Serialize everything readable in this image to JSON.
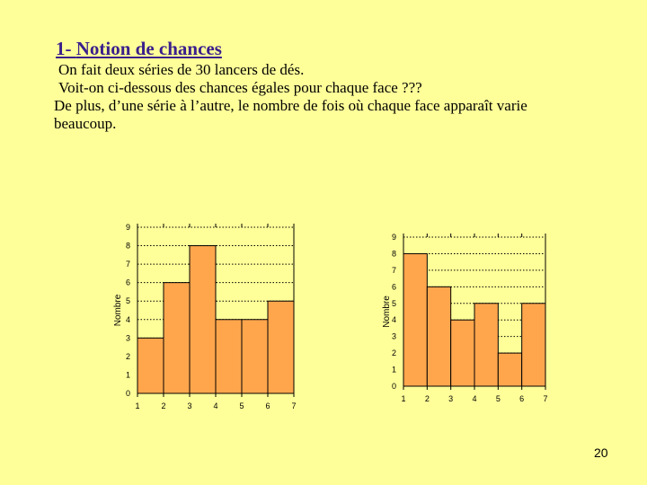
{
  "slide": {
    "title_number": "1-",
    "title_text": "Notion de chances",
    "lines": [
      "On fait deux séries de 30 lancers de dés.",
      "Voit-on ci-dessous des chances égales pour chaque face ???",
      "De plus, d’une série à l’autre, le nombre de fois où chaque face apparaît  varie",
      "beaucoup."
    ],
    "page_number": "20"
  },
  "colors": {
    "background": "#ffff99",
    "bar": "#ffa64d",
    "title": "#3a1f8c"
  },
  "chart_data": [
    {
      "type": "bar",
      "categories": [
        "1",
        "2",
        "3",
        "4",
        "5",
        "6"
      ],
      "values": [
        3,
        6,
        8,
        4,
        4,
        5
      ],
      "x_ticks": [
        "1",
        "2",
        "3",
        "4",
        "5",
        "6",
        "7"
      ],
      "y_ticks": [
        "0",
        "1",
        "2",
        "3",
        "4",
        "5",
        "6",
        "7",
        "8",
        "9"
      ],
      "ylim": [
        0,
        9
      ],
      "ylabel": "Nombre",
      "xlabel": "",
      "grid": true
    },
    {
      "type": "bar",
      "categories": [
        "1",
        "2",
        "3",
        "4",
        "5",
        "6"
      ],
      "values": [
        8,
        6,
        4,
        5,
        2,
        5
      ],
      "x_ticks": [
        "1",
        "2",
        "3",
        "4",
        "5",
        "6",
        "7"
      ],
      "y_ticks": [
        "0",
        "1",
        "2",
        "3",
        "4",
        "5",
        "6",
        "7",
        "8",
        "9"
      ],
      "ylim": [
        0,
        9
      ],
      "ylabel": "Nombre",
      "xlabel": "",
      "grid": true
    }
  ]
}
